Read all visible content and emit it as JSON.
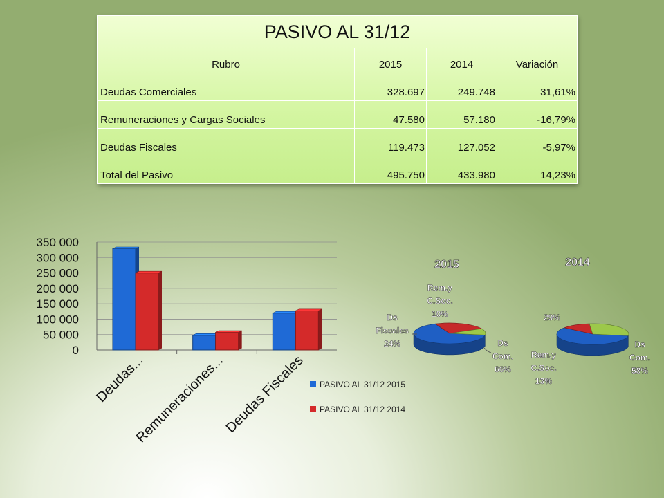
{
  "table": {
    "title": "PASIVO AL 31/12",
    "headers": [
      "Rubro",
      "2015",
      "2014",
      "Variación"
    ],
    "rows": [
      [
        "Deudas Comerciales",
        "328.697",
        "249.748",
        "31,61%"
      ],
      [
        "Remuneraciones y Cargas Sociales",
        "47.580",
        "57.180",
        "-16,79%"
      ],
      [
        "Deudas Fiscales",
        "119.473",
        "127.052",
        "-5,97%"
      ],
      [
        "Total del Pasivo",
        "495.750",
        "433.980",
        "14,23%"
      ]
    ]
  },
  "chart_data": [
    {
      "type": "bar",
      "categories": [
        "Deudas...",
        "Remuneraciones...",
        "Deudas Fiscales"
      ],
      "series": [
        {
          "name": "PASIVO AL 31/12 2015",
          "color": "#1f6ad6",
          "values": [
            328697,
            47580,
            119473
          ]
        },
        {
          "name": "PASIVO AL 31/12 2014",
          "color": "#d42a2a",
          "values": [
            249748,
            57180,
            127052
          ]
        }
      ],
      "ylim": [
        0,
        350000
      ],
      "yticks": [
        "0",
        "50 000",
        "100 000",
        "150 000",
        "200 000",
        "250 000",
        "300 000",
        "350 000"
      ],
      "grid": true,
      "legend": "bottom-right"
    },
    {
      "type": "pie",
      "title": "2015",
      "slices": [
        {
          "label": "Ds Com.",
          "pct_label": "66%",
          "value": 66,
          "color": "#1f5fc4"
        },
        {
          "label": "Ds Fiscales",
          "pct_label": "24%",
          "value": 24,
          "color": "#c62a2a"
        },
        {
          "label": "Rem.y C.Soc.",
          "pct_label": "10%",
          "value": 10,
          "color": "#9cc84a"
        }
      ]
    },
    {
      "type": "pie",
      "title": "2014",
      "slices": [
        {
          "label": "Ds Com.",
          "pct_label": "58%",
          "value": 58,
          "color": "#1f5fc4"
        },
        {
          "label": "Rem.y C.Soc.",
          "pct_label": "13%",
          "value": 13,
          "color": "#c62a2a"
        },
        {
          "label": "",
          "pct_label": "29%",
          "value": 29,
          "color": "#9cc84a"
        }
      ]
    }
  ]
}
